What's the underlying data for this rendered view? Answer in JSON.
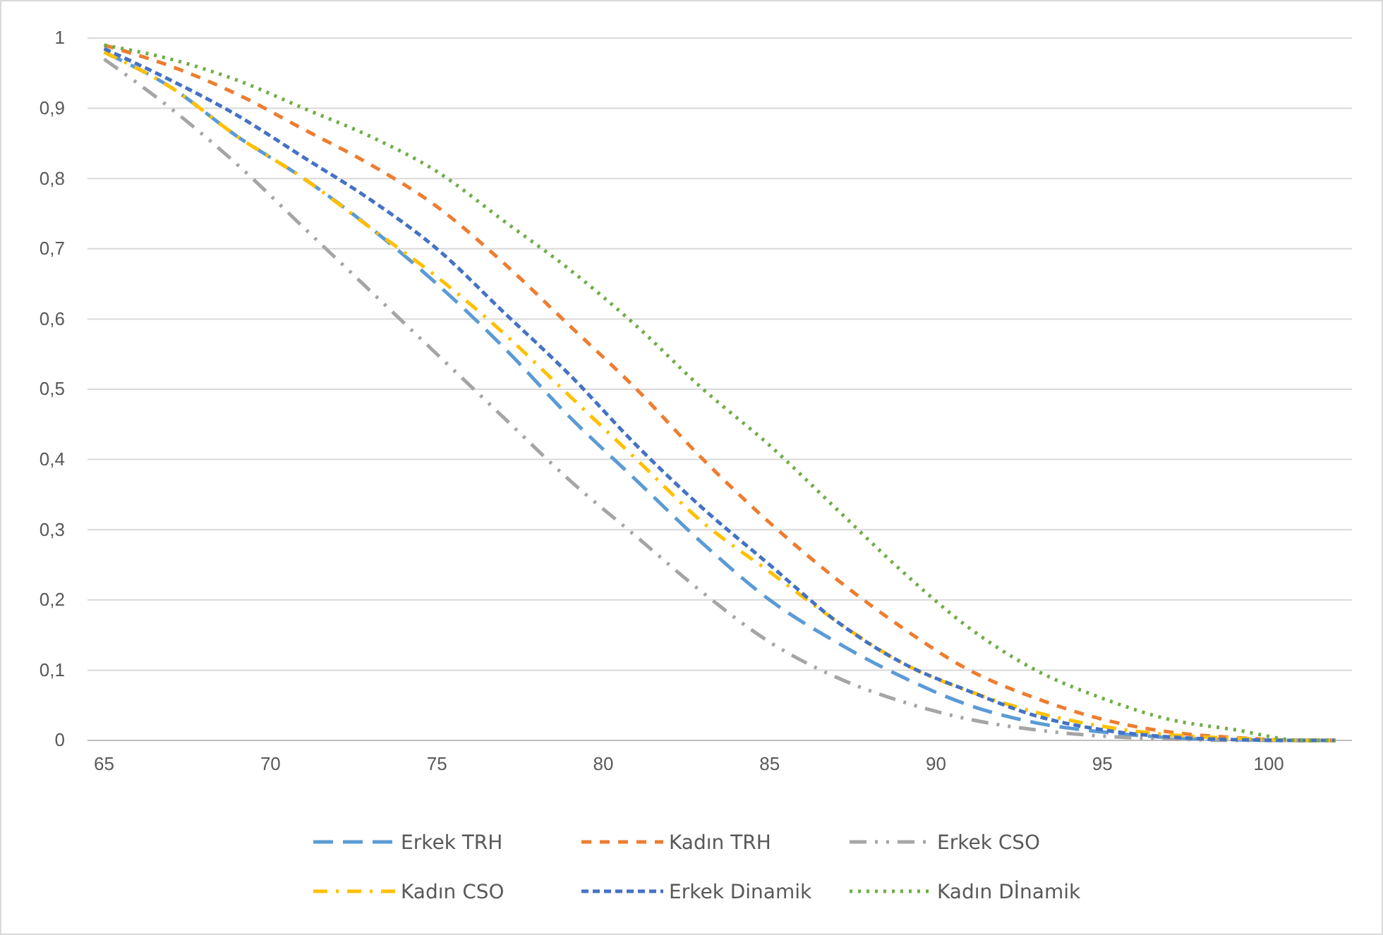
{
  "chart_data": {
    "type": "line",
    "xlim": [
      64.5,
      102.5
    ],
    "xticks": [
      65,
      70,
      75,
      80,
      85,
      90,
      95,
      100
    ],
    "ylim": [
      0,
      1
    ],
    "yticks": [
      0,
      {
        "value": 0.1,
        "label": "0,1"
      },
      {
        "value": 0.2,
        "label": "0,2"
      },
      {
        "value": 0.3,
        "label": "0,3"
      },
      {
        "value": 0.4,
        "label": "0,4"
      },
      {
        "value": 0.5,
        "label": "0,5"
      },
      {
        "value": 0.6,
        "label": "0,6"
      },
      {
        "value": 0.7,
        "label": "0,7"
      },
      {
        "value": 0.8,
        "label": "0,8"
      },
      {
        "value": 0.9,
        "label": "0,9"
      },
      1
    ],
    "x": [
      65,
      67,
      69,
      71,
      73,
      75,
      77,
      79,
      81,
      83,
      85,
      87,
      89,
      91,
      93,
      95,
      97,
      99,
      101,
      102
    ],
    "grid": "y",
    "legend": "bottom",
    "marker": "none",
    "series": [
      {
        "name": "Erkek TRH",
        "color": "#5b9bd5",
        "line_style": "dashed",
        "values": [
          0.98,
          0.93,
          0.86,
          0.8,
          0.73,
          0.65,
          0.56,
          0.46,
          0.37,
          0.28,
          0.2,
          0.14,
          0.09,
          0.05,
          0.025,
          0.012,
          0.004,
          0.001,
          0,
          0
        ]
      },
      {
        "name": "Kadın TRH",
        "color": "#ed7d31",
        "line_style": "dashed",
        "values": [
          0.99,
          0.96,
          0.92,
          0.87,
          0.82,
          0.76,
          0.68,
          0.59,
          0.5,
          0.4,
          0.31,
          0.23,
          0.16,
          0.1,
          0.06,
          0.03,
          0.012,
          0.004,
          0,
          0
        ]
      },
      {
        "name": "Erkek CSO",
        "color": "#a5a5a5",
        "line_style": "dashed",
        "values": [
          0.97,
          0.9,
          0.82,
          0.73,
          0.64,
          0.55,
          0.46,
          0.37,
          0.29,
          0.21,
          0.14,
          0.09,
          0.055,
          0.03,
          0.015,
          0.006,
          0.002,
          0,
          0,
          0
        ]
      },
      {
        "name": "Kadın CSO",
        "color": "#ffc000",
        "line_style": "dashed",
        "values": [
          0.98,
          0.93,
          0.86,
          0.8,
          0.73,
          0.66,
          0.58,
          0.49,
          0.4,
          0.31,
          0.24,
          0.17,
          0.11,
          0.07,
          0.04,
          0.02,
          0.008,
          0.003,
          0,
          0
        ]
      },
      {
        "name": "Erkek Dinamik",
        "color": "#4472c4",
        "line_style": "dashed",
        "values": [
          0.985,
          0.94,
          0.89,
          0.83,
          0.77,
          0.7,
          0.61,
          0.52,
          0.42,
          0.33,
          0.25,
          0.17,
          0.11,
          0.07,
          0.035,
          0.015,
          0.005,
          0.001,
          0,
          0
        ]
      },
      {
        "name": "Kadın Dİnamik",
        "color": "#70ad47",
        "line_style": "dotted",
        "values": [
          0.99,
          0.97,
          0.94,
          0.9,
          0.86,
          0.81,
          0.74,
          0.67,
          0.59,
          0.5,
          0.42,
          0.33,
          0.24,
          0.16,
          0.1,
          0.06,
          0.03,
          0.015,
          0,
          0
        ]
      }
    ]
  }
}
